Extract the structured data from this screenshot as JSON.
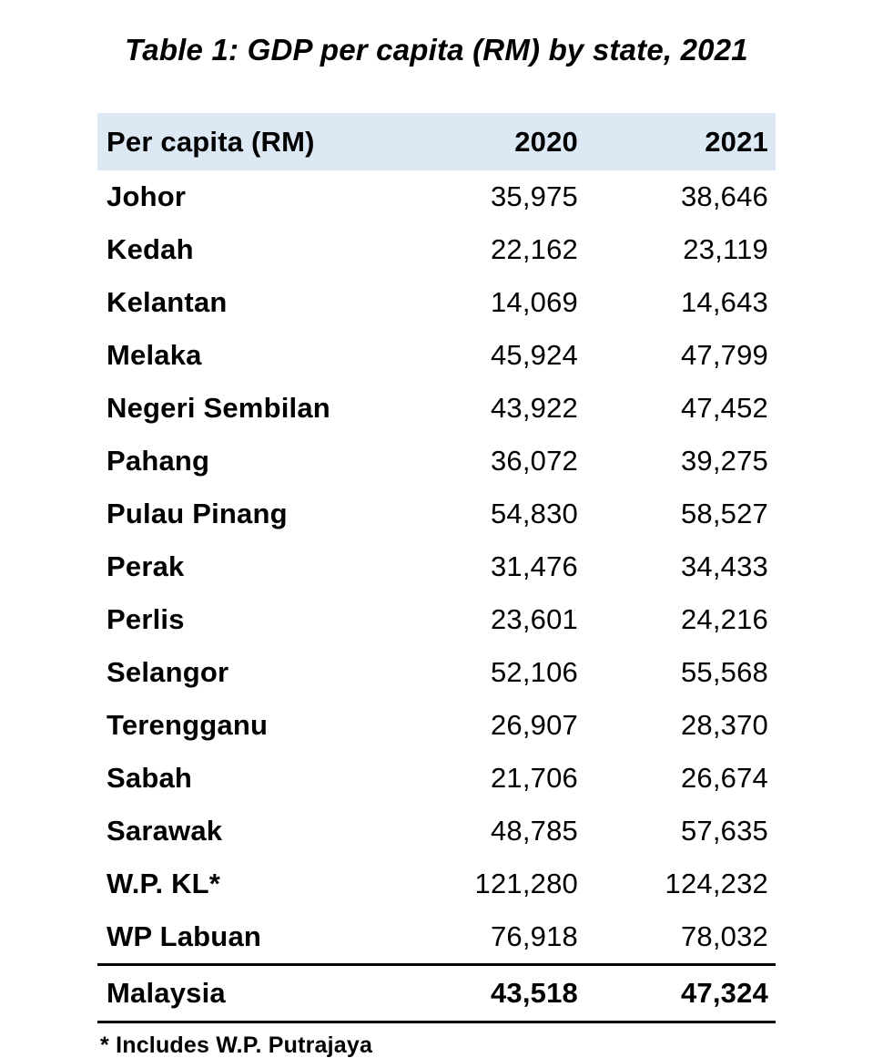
{
  "title": "Table 1: GDP per capita (RM) by state, 2021",
  "colors": {
    "header_bg": "#dce9f5",
    "text": "#000000",
    "rule": "#000000",
    "page_bg": "#ffffff"
  },
  "chart_data": {
    "type": "table",
    "title": "Table 1: GDP per capita (RM) by state, 2021",
    "columns": [
      "Per capita (RM)",
      "2020",
      "2021"
    ],
    "rows": [
      {
        "state": "Johor",
        "y2020": "35,975",
        "y2021": "38,646"
      },
      {
        "state": "Kedah",
        "y2020": "22,162",
        "y2021": "23,119"
      },
      {
        "state": "Kelantan",
        "y2020": "14,069",
        "y2021": "14,643"
      },
      {
        "state": "Melaka",
        "y2020": "45,924",
        "y2021": "47,799"
      },
      {
        "state": "Negeri Sembilan",
        "y2020": "43,922",
        "y2021": "47,452"
      },
      {
        "state": "Pahang",
        "y2020": "36,072",
        "y2021": "39,275"
      },
      {
        "state": "Pulau Pinang",
        "y2020": "54,830",
        "y2021": "58,527"
      },
      {
        "state": "Perak",
        "y2020": "31,476",
        "y2021": "34,433"
      },
      {
        "state": "Perlis",
        "y2020": "23,601",
        "y2021": "24,216"
      },
      {
        "state": "Selangor",
        "y2020": "52,106",
        "y2021": "55,568"
      },
      {
        "state": "Terengganu",
        "y2020": "26,907",
        "y2021": "28,370"
      },
      {
        "state": "Sabah",
        "y2020": "21,706",
        "y2021": "26,674"
      },
      {
        "state": "Sarawak",
        "y2020": "48,785",
        "y2021": "57,635"
      },
      {
        "state": "W.P. KL*",
        "y2020": "121,280",
        "y2021": "124,232"
      },
      {
        "state": "WP Labuan",
        "y2020": "76,918",
        "y2021": "78,032"
      }
    ],
    "total": {
      "state": "Malaysia",
      "y2020": "43,518",
      "y2021": "47,324"
    },
    "footnote": "* Includes W.P. Putrajaya"
  }
}
